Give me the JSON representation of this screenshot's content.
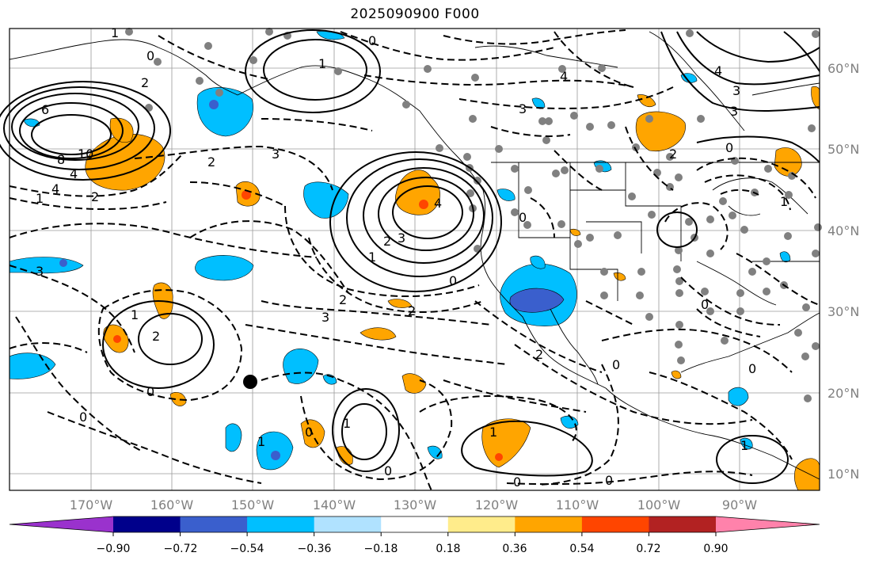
{
  "title": "2025090900 F000",
  "map": {
    "lat_labels": [
      {
        "label": "60°N",
        "lat": 60
      },
      {
        "label": "50°N",
        "lat": 50
      },
      {
        "label": "40°N",
        "lat": 40
      },
      {
        "label": "30°N",
        "lat": 30
      },
      {
        "label": "20°N",
        "lat": 20
      },
      {
        "label": "10°N",
        "lat": 10
      }
    ],
    "lon_labels": [
      {
        "label": "170°W",
        "lon": -170
      },
      {
        "label": "160°W",
        "lon": -160
      },
      {
        "label": "150°W",
        "lon": -150
      },
      {
        "label": "140°W",
        "lon": -140
      },
      {
        "label": "130°W",
        "lon": -130
      },
      {
        "label": "120°W",
        "lon": -120
      },
      {
        "label": "110°W",
        "lon": -110
      },
      {
        "label": "100°W",
        "lon": -100
      },
      {
        "label": "90°W",
        "lon": -90
      }
    ],
    "contour_labels": [
      "1",
      "0",
      "2",
      "6",
      "8",
      "10",
      "4",
      "4",
      "2",
      "1",
      "3",
      "2",
      "3",
      "1",
      "0",
      "3",
      "1",
      "2",
      "3",
      "4",
      "0",
      "2",
      "2",
      "3",
      "2",
      "1",
      "0",
      "1",
      "1",
      "0",
      "0",
      "0",
      "3",
      "4",
      "3",
      "2",
      "0",
      "4",
      "0",
      "2",
      "1",
      "0",
      "0",
      "0",
      "1",
      "0",
      "1",
      "0"
    ],
    "station_marker_color": "#808080",
    "point_marker_color": "#000000"
  },
  "colorbar": {
    "colors": [
      "#9a32cd",
      "#00008b",
      "#3a5fcd",
      "#00bfff",
      "#b0e2ff",
      "#ffffff",
      "#ffec8b",
      "#ffa500",
      "#ff4500",
      "#b22222",
      "#ff82ab"
    ],
    "tick_labels": [
      "−0.90",
      "−0.72",
      "−0.54",
      "−0.36",
      "−0.18",
      "0.18",
      "0.36",
      "0.54",
      "0.72",
      "0.90"
    ]
  }
}
